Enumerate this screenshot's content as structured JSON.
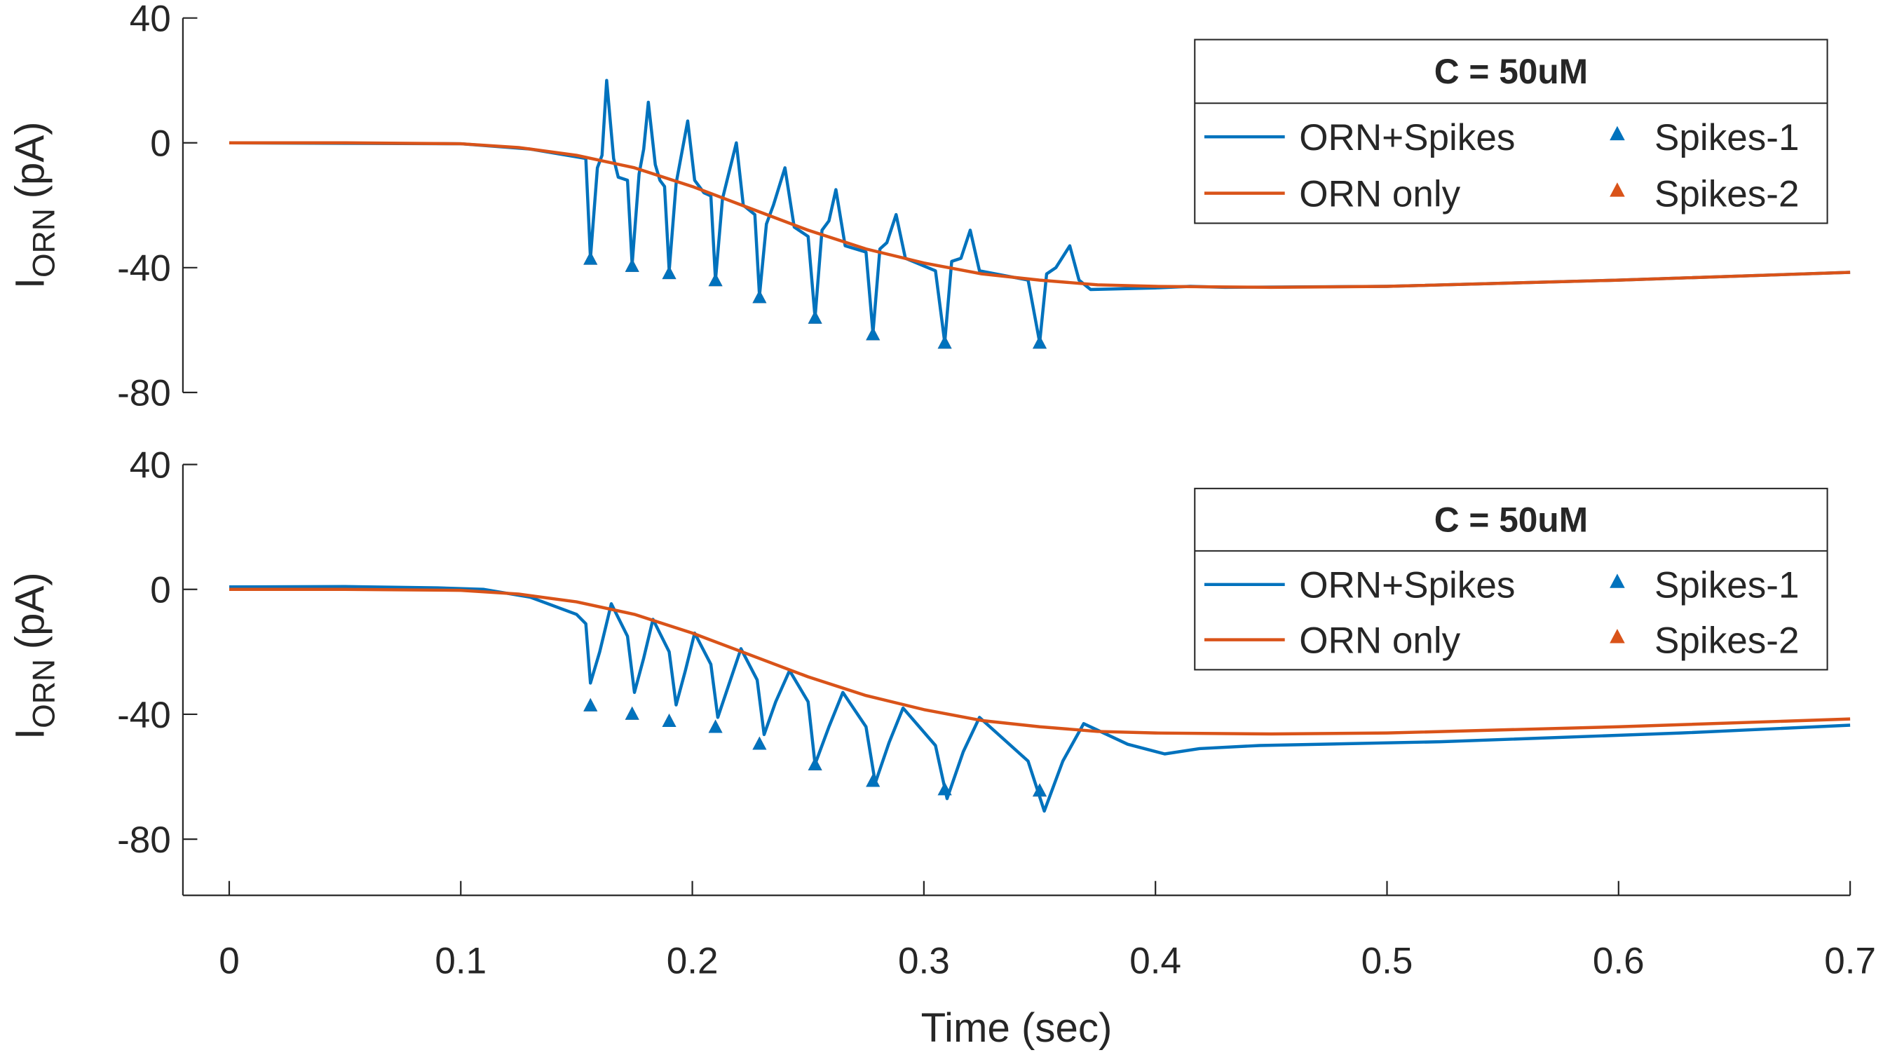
{
  "chart_data": [
    {
      "type": "line",
      "legend_title": "C = 50uM",
      "ylabel": [
        "I",
        "ORN",
        "(pA)"
      ],
      "xlim": [
        -0.02,
        0.7
      ],
      "ylim": [
        -80,
        40
      ],
      "yticks": [
        40,
        0,
        -40,
        -80
      ],
      "series": [
        {
          "name": "ORN+Spikes",
          "color": "#0072bd",
          "x": [
            0,
            0.1,
            0.13,
            0.15,
            0.154,
            0.156,
            0.159,
            0.161,
            0.163,
            0.166,
            0.168,
            0.172,
            0.174,
            0.177,
            0.179,
            0.181,
            0.184,
            0.186,
            0.188,
            0.19,
            0.193,
            0.195,
            0.198,
            0.201,
            0.205,
            0.208,
            0.21,
            0.213,
            0.215,
            0.219,
            0.222,
            0.227,
            0.229,
            0.232,
            0.235,
            0.24,
            0.244,
            0.25,
            0.253,
            0.256,
            0.259,
            0.262,
            0.266,
            0.275,
            0.278,
            0.281,
            0.284,
            0.288,
            0.292,
            0.305,
            0.309,
            0.312,
            0.316,
            0.32,
            0.324,
            0.345,
            0.35,
            0.353,
            0.357,
            0.363,
            0.367,
            0.372,
            0.4,
            0.415,
            0.43,
            0.5,
            0.6,
            0.7
          ],
          "values": [
            0,
            -0.3,
            -2,
            -4.5,
            -5,
            -37,
            -8,
            -4,
            20,
            -5,
            -11,
            -12,
            -39,
            -10,
            -2,
            13,
            -7,
            -12,
            -14,
            -41,
            -13,
            -5,
            7,
            -12,
            -16,
            -17,
            -44,
            -18,
            -12,
            0,
            -20,
            -23,
            -49,
            -26,
            -20,
            -8,
            -27,
            -30,
            -56,
            -28,
            -25,
            -15,
            -33,
            -35,
            -61,
            -34,
            -32,
            -23,
            -37,
            -41,
            -64,
            -38,
            -37,
            -28,
            -41,
            -44,
            -64,
            -42,
            -40,
            -33,
            -44,
            -47,
            -46.5,
            -46,
            -46.3,
            -46,
            -44,
            -41.5
          ]
        },
        {
          "name": "ORN only",
          "color": "#d95319",
          "x": [
            0,
            0.05,
            0.1,
            0.125,
            0.15,
            0.175,
            0.2,
            0.225,
            0.25,
            0.275,
            0.3,
            0.325,
            0.35,
            0.375,
            0.4,
            0.45,
            0.5,
            0.6,
            0.7
          ],
          "values": [
            0,
            0,
            -0.3,
            -1.5,
            -4,
            -8,
            -14,
            -21,
            -28,
            -34,
            -38.5,
            -42,
            -44,
            -45.5,
            -46,
            -46.3,
            -46,
            -44,
            -41.5
          ]
        },
        {
          "name": "Spikes-1",
          "color": "#0072bd",
          "marker": "triangle",
          "x": [
            0.156,
            0.174,
            0.19,
            0.21,
            0.229,
            0.253,
            0.278,
            0.309,
            0.35
          ],
          "values": [
            -37.3,
            -39.6,
            -41.9,
            -44.2,
            -49.6,
            -56.2,
            -61.5,
            -64.2,
            -64.2
          ]
        },
        {
          "name": "Spikes-2",
          "color": "#d95319",
          "marker": "triangle",
          "x": [
            0.156,
            0.174,
            0.19,
            0.21,
            0.229,
            0.253,
            0.278,
            0.309,
            0.35
          ],
          "values": [
            -37.3,
            -39.6,
            -41.9,
            -44.2,
            -49.6,
            -56.2,
            -61.5,
            -64.2,
            -64.2
          ]
        }
      ]
    },
    {
      "type": "line",
      "legend_title": "C = 50uM",
      "ylabel": [
        "I",
        "ORN",
        "(pA)"
      ],
      "xlabel": "Time (sec)",
      "xlim": [
        -0.02,
        0.7
      ],
      "ylim": [
        -98,
        40
      ],
      "yticks": [
        40,
        0,
        -40,
        -80
      ],
      "xticks": [
        0,
        0.1,
        0.2,
        0.3,
        0.4,
        0.5,
        0.6,
        0.7
      ],
      "series": [
        {
          "name": "ORN+Spikes",
          "color": "#0072bd",
          "x": [
            0,
            0.05,
            0.09,
            0.11,
            0.13,
            0.15,
            0.154,
            0.156,
            0.16,
            0.165,
            0.172,
            0.175,
            0.179,
            0.183,
            0.19,
            0.193,
            0.197,
            0.201,
            0.208,
            0.211,
            0.216,
            0.221,
            0.228,
            0.231,
            0.236,
            0.242,
            0.25,
            0.253,
            0.259,
            0.265,
            0.275,
            0.279,
            0.285,
            0.291,
            0.305,
            0.31,
            0.317,
            0.324,
            0.345,
            0.352,
            0.36,
            0.369,
            0.388,
            0.404,
            0.419,
            0.445,
            0.523,
            0.627,
            0.7
          ],
          "values": [
            0.8,
            0.9,
            0.5,
            0,
            -2.5,
            -8,
            -11,
            -30,
            -20,
            -4.6,
            -15,
            -33,
            -22,
            -9.6,
            -20,
            -37,
            -26,
            -14,
            -24,
            -41,
            -30,
            -19,
            -29,
            -46.5,
            -36,
            -26,
            -36,
            -56,
            -44,
            -33,
            -44,
            -62,
            -49,
            -38,
            -50,
            -67,
            -52,
            -41,
            -55,
            -71,
            -55,
            -43,
            -49.6,
            -52.7,
            -51,
            -50,
            -48.8,
            -46,
            -43.5
          ]
        },
        {
          "name": "ORN only",
          "color": "#d95319",
          "x": [
            0,
            0.05,
            0.1,
            0.125,
            0.15,
            0.175,
            0.2,
            0.225,
            0.25,
            0.275,
            0.3,
            0.325,
            0.35,
            0.375,
            0.4,
            0.45,
            0.5,
            0.6,
            0.7
          ],
          "values": [
            0,
            0,
            -0.3,
            -1.5,
            -4,
            -8,
            -14,
            -21,
            -28,
            -34,
            -38.5,
            -42,
            -44,
            -45.5,
            -46,
            -46.3,
            -46,
            -44,
            -41.5
          ]
        },
        {
          "name": "Spikes-1",
          "color": "#0072bd",
          "marker": "triangle",
          "x": [
            0.156,
            0.174,
            0.19,
            0.21,
            0.229,
            0.253,
            0.278,
            0.309,
            0.35
          ],
          "values": [
            -37.3,
            -40,
            -42.3,
            -44.2,
            -49.6,
            -56.2,
            -61.5,
            -64.2,
            -64.6
          ]
        },
        {
          "name": "Spikes-2",
          "color": "#d95319",
          "marker": "triangle",
          "x": [
            0.156,
            0.174,
            0.19,
            0.21,
            0.229,
            0.253,
            0.278,
            0.309,
            0.35
          ],
          "values": [
            -37.3,
            -40,
            -42.3,
            -44.2,
            -49.6,
            -56.2,
            -61.5,
            -64.2,
            -64.6
          ]
        }
      ]
    }
  ]
}
